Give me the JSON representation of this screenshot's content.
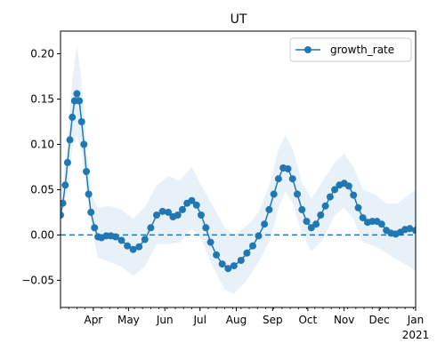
{
  "chart_data": {
    "type": "line",
    "title": "UT",
    "xlabel": "",
    "ylabel": "",
    "x_range": [
      "2020-03-04",
      "2021-01-01"
    ],
    "ylim": [
      -0.08,
      0.225
    ],
    "x_ticks": [
      {
        "date": "2020-04-01",
        "label": "Apr"
      },
      {
        "date": "2020-05-01",
        "label": "May"
      },
      {
        "date": "2020-06-01",
        "label": "Jun"
      },
      {
        "date": "2020-07-01",
        "label": "Jul"
      },
      {
        "date": "2020-08-01",
        "label": "Aug"
      },
      {
        "date": "2020-09-01",
        "label": "Sep"
      },
      {
        "date": "2020-10-01",
        "label": "Oct"
      },
      {
        "date": "2020-11-01",
        "label": "Nov"
      },
      {
        "date": "2020-12-01",
        "label": "Dec"
      },
      {
        "date": "2021-01-01",
        "label": "Jan"
      }
    ],
    "x_year_label": "2021",
    "y_ticks": [
      {
        "value": -0.05,
        "label": "−0.05"
      },
      {
        "value": 0.0,
        "label": "0.00"
      },
      {
        "value": 0.05,
        "label": "0.05"
      },
      {
        "value": 0.1,
        "label": "0.10"
      },
      {
        "value": 0.15,
        "label": "0.15"
      },
      {
        "value": 0.2,
        "label": "0.20"
      }
    ],
    "reference_line": {
      "y": 0.0,
      "style": "dashed"
    },
    "grid": false,
    "legend": {
      "position": "top-right",
      "entries": [
        "growth_rate"
      ]
    },
    "series": [
      {
        "name": "growth_rate",
        "color": "#1f77b4",
        "marker": "circle",
        "points": [
          [
            "2020-03-04",
            0.022
          ],
          [
            "2020-03-06",
            0.035
          ],
          [
            "2020-03-08",
            0.055
          ],
          [
            "2020-03-10",
            0.08
          ],
          [
            "2020-03-12",
            0.105
          ],
          [
            "2020-03-14",
            0.13
          ],
          [
            "2020-03-16",
            0.148
          ],
          [
            "2020-03-18",
            0.156
          ],
          [
            "2020-03-20",
            0.148
          ],
          [
            "2020-03-22",
            0.125
          ],
          [
            "2020-03-24",
            0.1
          ],
          [
            "2020-03-26",
            0.07
          ],
          [
            "2020-03-28",
            0.045
          ],
          [
            "2020-03-30",
            0.025
          ],
          [
            "2020-04-02",
            0.008
          ],
          [
            "2020-04-05",
            -0.002
          ],
          [
            "2020-04-08",
            -0.003
          ],
          [
            "2020-04-12",
            -0.001
          ],
          [
            "2020-04-16",
            -0.001
          ],
          [
            "2020-04-20",
            -0.002
          ],
          [
            "2020-04-25",
            -0.006
          ],
          [
            "2020-04-30",
            -0.012
          ],
          [
            "2020-05-05",
            -0.016
          ],
          [
            "2020-05-10",
            -0.013
          ],
          [
            "2020-05-15",
            -0.005
          ],
          [
            "2020-05-20",
            0.008
          ],
          [
            "2020-05-25",
            0.022
          ],
          [
            "2020-05-30",
            0.026
          ],
          [
            "2020-06-04",
            0.025
          ],
          [
            "2020-06-08",
            0.02
          ],
          [
            "2020-06-12",
            0.022
          ],
          [
            "2020-06-16",
            0.028
          ],
          [
            "2020-06-20",
            0.035
          ],
          [
            "2020-06-24",
            0.038
          ],
          [
            "2020-06-28",
            0.033
          ],
          [
            "2020-07-02",
            0.022
          ],
          [
            "2020-07-06",
            0.008
          ],
          [
            "2020-07-10",
            -0.008
          ],
          [
            "2020-07-15",
            -0.022
          ],
          [
            "2020-07-20",
            -0.032
          ],
          [
            "2020-07-25",
            -0.037
          ],
          [
            "2020-07-30",
            -0.034
          ],
          [
            "2020-08-05",
            -0.028
          ],
          [
            "2020-08-10",
            -0.02
          ],
          [
            "2020-08-15",
            -0.012
          ],
          [
            "2020-08-20",
            -0.001
          ],
          [
            "2020-08-25",
            0.012
          ],
          [
            "2020-08-29",
            0.028
          ],
          [
            "2020-09-02",
            0.045
          ],
          [
            "2020-09-06",
            0.062
          ],
          [
            "2020-09-10",
            0.074
          ],
          [
            "2020-09-14",
            0.073
          ],
          [
            "2020-09-18",
            0.062
          ],
          [
            "2020-09-22",
            0.045
          ],
          [
            "2020-09-26",
            0.028
          ],
          [
            "2020-09-30",
            0.015
          ],
          [
            "2020-10-04",
            0.008
          ],
          [
            "2020-10-08",
            0.012
          ],
          [
            "2020-10-12",
            0.022
          ],
          [
            "2020-10-16",
            0.032
          ],
          [
            "2020-10-20",
            0.042
          ],
          [
            "2020-10-24",
            0.05
          ],
          [
            "2020-10-28",
            0.055
          ],
          [
            "2020-11-01",
            0.057
          ],
          [
            "2020-11-05",
            0.054
          ],
          [
            "2020-11-09",
            0.044
          ],
          [
            "2020-11-13",
            0.03
          ],
          [
            "2020-11-17",
            0.019
          ],
          [
            "2020-11-21",
            0.014
          ],
          [
            "2020-11-25",
            0.015
          ],
          [
            "2020-11-29",
            0.015
          ],
          [
            "2020-12-03",
            0.012
          ],
          [
            "2020-12-07",
            0.005
          ],
          [
            "2020-12-11",
            0.002
          ],
          [
            "2020-12-15",
            0.001
          ],
          [
            "2020-12-19",
            0.003
          ],
          [
            "2020-12-23",
            0.006
          ],
          [
            "2020-12-27",
            0.007
          ],
          [
            "2021-01-01",
            0.005
          ]
        ],
        "band": [
          [
            "2020-03-04",
            0.012,
            0.032
          ],
          [
            "2020-03-10",
            0.055,
            0.105
          ],
          [
            "2020-03-14",
            0.095,
            0.17
          ],
          [
            "2020-03-18",
            0.11,
            0.21
          ],
          [
            "2020-03-22",
            0.09,
            0.17
          ],
          [
            "2020-03-26",
            0.05,
            0.1
          ],
          [
            "2020-03-30",
            0.012,
            0.045
          ],
          [
            "2020-04-05",
            -0.025,
            0.03
          ],
          [
            "2020-04-15",
            -0.03,
            0.032
          ],
          [
            "2020-04-25",
            -0.035,
            0.028
          ],
          [
            "2020-05-05",
            -0.045,
            0.018
          ],
          [
            "2020-05-15",
            -0.035,
            0.03
          ],
          [
            "2020-05-25",
            -0.01,
            0.055
          ],
          [
            "2020-06-04",
            -0.01,
            0.065
          ],
          [
            "2020-06-14",
            -0.008,
            0.06
          ],
          [
            "2020-06-24",
            0.008,
            0.075
          ],
          [
            "2020-07-02",
            -0.005,
            0.055
          ],
          [
            "2020-07-12",
            -0.035,
            0.032
          ],
          [
            "2020-07-22",
            -0.06,
            0.008
          ],
          [
            "2020-07-30",
            -0.065,
            0.0
          ],
          [
            "2020-08-10",
            -0.05,
            0.01
          ],
          [
            "2020-08-20",
            -0.03,
            0.025
          ],
          [
            "2020-08-30",
            -0.005,
            0.058
          ],
          [
            "2020-09-06",
            0.03,
            0.095
          ],
          [
            "2020-09-12",
            0.048,
            0.11
          ],
          [
            "2020-09-18",
            0.035,
            0.095
          ],
          [
            "2020-09-26",
            0.002,
            0.058
          ],
          [
            "2020-10-04",
            -0.018,
            0.04
          ],
          [
            "2020-10-14",
            -0.005,
            0.06
          ],
          [
            "2020-10-24",
            0.022,
            0.08
          ],
          [
            "2020-11-01",
            0.03,
            0.09
          ],
          [
            "2020-11-09",
            0.018,
            0.075
          ],
          [
            "2020-11-17",
            -0.008,
            0.05
          ],
          [
            "2020-11-27",
            -0.012,
            0.045
          ],
          [
            "2020-12-07",
            -0.02,
            0.035
          ],
          [
            "2020-12-17",
            -0.028,
            0.035
          ],
          [
            "2020-12-27",
            -0.035,
            0.045
          ],
          [
            "2021-01-01",
            -0.04,
            0.05
          ]
        ]
      }
    ]
  }
}
